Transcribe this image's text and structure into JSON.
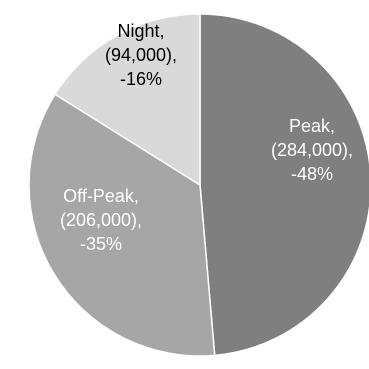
{
  "chart_data": {
    "type": "pie",
    "title": "",
    "slices": [
      {
        "name": "Peak",
        "value": 284000,
        "percent": -48,
        "color": "#7f7f7f",
        "text_color": "#ffffff",
        "label_lines": [
          "Peak,",
          "(284,000),",
          "-48%"
        ]
      },
      {
        "name": "Off-Peak",
        "value": 206000,
        "percent": -35,
        "color": "#a6a6a6",
        "text_color": "#ffffff",
        "label_lines": [
          "Off-Peak,",
          "(206,000),",
          "-35%"
        ]
      },
      {
        "name": "Night",
        "value": 94000,
        "percent": -16,
        "color": "#d9d9d9",
        "text_color": "#000000",
        "label_lines": [
          "Night,",
          "(94,000),",
          "-16%"
        ]
      }
    ],
    "start_angle": "12 o'clock",
    "direction": "clockwise",
    "legend": "none",
    "slice_border_color": "#ffffff"
  }
}
